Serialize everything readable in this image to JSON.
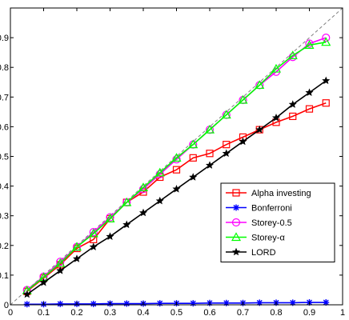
{
  "chart_data": {
    "type": "line",
    "title": "",
    "xlabel": "",
    "ylabel": "",
    "xlim": [
      0,
      1
    ],
    "ylim": [
      0,
      1
    ],
    "xticks": [
      "0",
      "0.1",
      "0.2",
      "0.3",
      "0.4",
      "0.5",
      "0.6",
      "0.7",
      "0.8",
      "0.9",
      "1"
    ],
    "yticks": [
      "0",
      "0.1",
      "0.2",
      "0.3",
      "0.4",
      "0.5",
      "0.6",
      "0.7",
      "0.8",
      "0.9"
    ],
    "grid": false,
    "legend_position": "lower-right",
    "reference_line": {
      "style": "dashed",
      "color": "#808080",
      "from": [
        0,
        0
      ],
      "to": [
        1,
        1
      ]
    },
    "x": [
      0.05,
      0.1,
      0.15,
      0.2,
      0.25,
      0.3,
      0.35,
      0.4,
      0.45,
      0.5,
      0.55,
      0.6,
      0.65,
      0.7,
      0.75,
      0.8,
      0.85,
      0.9,
      0.95
    ],
    "series": [
      {
        "name": "Alpha investing",
        "color": "#ff0000",
        "marker": "square",
        "values": [
          0.045,
          0.09,
          0.135,
          0.19,
          0.22,
          0.29,
          0.345,
          0.38,
          0.43,
          0.455,
          0.495,
          0.51,
          0.54,
          0.565,
          0.59,
          0.615,
          0.635,
          0.66,
          0.68
        ]
      },
      {
        "name": "Bonferroni",
        "color": "#0000ff",
        "marker": "asterisk",
        "values": [
          0.002,
          0.002,
          0.003,
          0.003,
          0.003,
          0.004,
          0.004,
          0.004,
          0.005,
          0.005,
          0.005,
          0.006,
          0.006,
          0.006,
          0.007,
          0.007,
          0.007,
          0.008,
          0.008
        ]
      },
      {
        "name": "Storey-0.5",
        "color": "#ff00ff",
        "marker": "circle",
        "values": [
          0.05,
          0.095,
          0.145,
          0.195,
          0.245,
          0.295,
          0.345,
          0.39,
          0.44,
          0.49,
          0.54,
          0.59,
          0.64,
          0.69,
          0.74,
          0.785,
          0.835,
          0.88,
          0.9
        ]
      },
      {
        "name": "Storey-α",
        "color": "#00ff00",
        "marker": "triangle",
        "values": [
          0.048,
          0.093,
          0.14,
          0.195,
          0.24,
          0.29,
          0.345,
          0.395,
          0.445,
          0.495,
          0.54,
          0.59,
          0.64,
          0.69,
          0.74,
          0.795,
          0.84,
          0.875,
          0.885
        ]
      },
      {
        "name": "LORD",
        "color": "#000000",
        "marker": "star",
        "values": [
          0.035,
          0.075,
          0.115,
          0.155,
          0.195,
          0.23,
          0.27,
          0.31,
          0.35,
          0.39,
          0.43,
          0.47,
          0.51,
          0.55,
          0.59,
          0.63,
          0.675,
          0.715,
          0.755
        ]
      }
    ]
  }
}
